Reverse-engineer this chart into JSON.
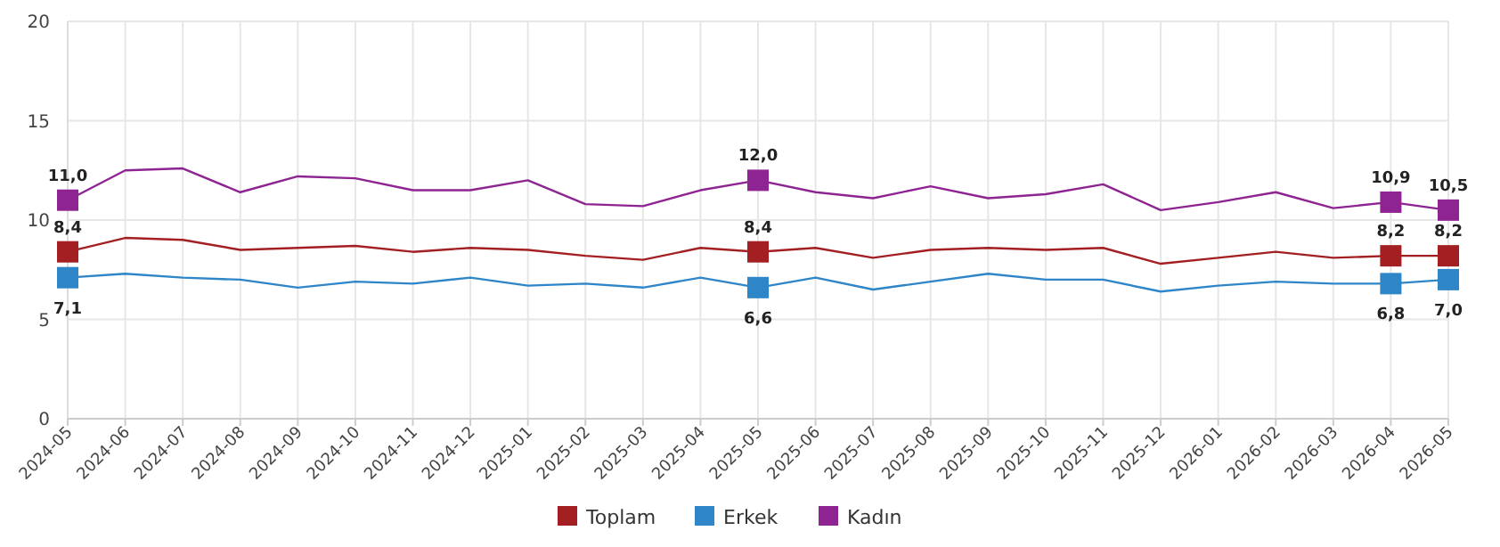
{
  "chart_data": {
    "type": "line",
    "categories": [
      "2024-05",
      "2024-06",
      "2024-07",
      "2024-08",
      "2024-09",
      "2024-10",
      "2024-11",
      "2024-12",
      "2025-01",
      "2025-02",
      "2025-03",
      "2025-04",
      "2025-05",
      "2025-06",
      "2025-07",
      "2025-08",
      "2025-09",
      "2025-10",
      "2025-11",
      "2025-12",
      "2026-01",
      "2026-02",
      "2026-03",
      "2026-04",
      "2026-05"
    ],
    "series": [
      {
        "name": "Toplam",
        "color": "#a31f22",
        "values": [
          8.4,
          9.1,
          9.0,
          8.5,
          8.6,
          8.7,
          8.4,
          8.6,
          8.5,
          8.2,
          8.0,
          8.6,
          8.4,
          8.6,
          8.1,
          8.5,
          8.6,
          8.5,
          8.6,
          7.8,
          8.1,
          8.4,
          8.1,
          8.2,
          8.2
        ],
        "value_labels": [
          "8,4",
          null,
          null,
          null,
          null,
          null,
          null,
          null,
          null,
          null,
          null,
          null,
          "8,4",
          null,
          null,
          null,
          null,
          null,
          null,
          null,
          null,
          null,
          null,
          "8,2",
          "8,2"
        ]
      },
      {
        "name": "Erkek",
        "color": "#2e86c8",
        "values": [
          7.1,
          7.3,
          7.1,
          7.0,
          6.6,
          6.9,
          6.8,
          7.1,
          6.7,
          6.8,
          6.6,
          7.1,
          6.6,
          7.1,
          6.5,
          6.9,
          7.3,
          7.0,
          7.0,
          6.4,
          6.7,
          6.9,
          6.8,
          6.8,
          7.0
        ],
        "value_labels": [
          "7,1",
          null,
          null,
          null,
          null,
          null,
          null,
          null,
          null,
          null,
          null,
          null,
          "6,6",
          null,
          null,
          null,
          null,
          null,
          null,
          null,
          null,
          null,
          null,
          "6,8",
          "7,0"
        ]
      },
      {
        "name": "Kadın",
        "color": "#8e2491",
        "values": [
          11.0,
          12.5,
          12.6,
          11.4,
          12.2,
          12.1,
          11.5,
          11.5,
          12.0,
          10.8,
          10.7,
          11.5,
          12.0,
          11.4,
          11.1,
          11.7,
          11.1,
          11.3,
          11.8,
          10.5,
          10.9,
          11.4,
          10.6,
          10.9,
          10.5
        ],
        "value_labels": [
          "11,0",
          null,
          null,
          null,
          null,
          null,
          null,
          null,
          null,
          null,
          null,
          null,
          "12,0",
          null,
          null,
          null,
          null,
          null,
          null,
          null,
          null,
          null,
          null,
          "10,9",
          "10,5"
        ]
      }
    ],
    "ylim": [
      0,
      20
    ],
    "yticks": [
      0,
      5,
      10,
      15,
      20
    ],
    "grid": true,
    "legend": "bottom",
    "line_style": "solid"
  }
}
